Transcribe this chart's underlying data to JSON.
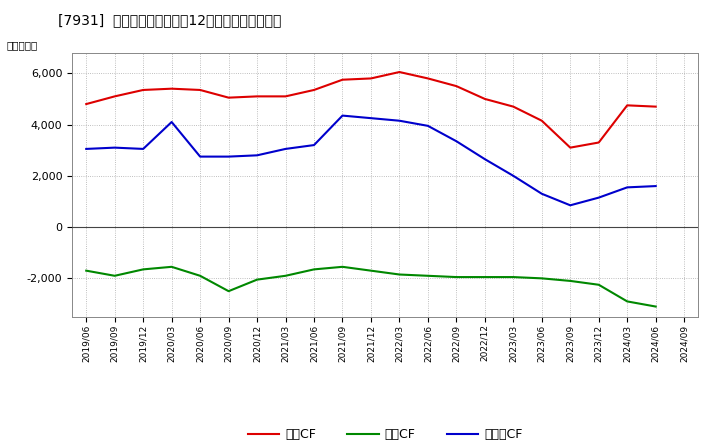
{
  "title": "[7931]  キャッシュフローの12か月移動合計の推移",
  "ylabel": "（百万円）",
  "background_color": "#ffffff",
  "plot_bg_color": "#ffffff",
  "grid_color": "#aaaaaa",
  "ylim": [
    -3500,
    6800
  ],
  "yticks": [
    -2000,
    0,
    2000,
    4000,
    6000
  ],
  "x_labels": [
    "2019/06",
    "2019/09",
    "2019/12",
    "2020/03",
    "2020/06",
    "2020/09",
    "2020/12",
    "2021/03",
    "2021/06",
    "2021/09",
    "2021/12",
    "2022/03",
    "2022/06",
    "2022/09",
    "2022/12",
    "2023/03",
    "2023/06",
    "2023/09",
    "2023/12",
    "2024/03",
    "2024/06",
    "2024/09"
  ],
  "operating_cf": {
    "label": "営業CF",
    "color": "#dd0000",
    "x": [
      "2019/06",
      "2019/09",
      "2019/12",
      "2020/03",
      "2020/06",
      "2020/09",
      "2020/12",
      "2021/03",
      "2021/06",
      "2021/09",
      "2021/12",
      "2022/03",
      "2022/06",
      "2022/09",
      "2022/12",
      "2023/03",
      "2023/06",
      "2023/09",
      "2023/12",
      "2024/03",
      "2024/06"
    ],
    "y": [
      4800,
      5100,
      5350,
      5400,
      5350,
      5050,
      5100,
      5100,
      5350,
      5750,
      5800,
      6050,
      5800,
      5500,
      5000,
      4700,
      4150,
      3100,
      3300,
      4750,
      4700
    ]
  },
  "investing_cf": {
    "label": "投資CF",
    "color": "#008800",
    "x": [
      "2019/06",
      "2019/09",
      "2019/12",
      "2020/03",
      "2020/06",
      "2020/09",
      "2020/12",
      "2021/03",
      "2021/06",
      "2021/09",
      "2021/12",
      "2022/03",
      "2022/06",
      "2022/09",
      "2022/12",
      "2023/03",
      "2023/06",
      "2023/09",
      "2023/12",
      "2024/03",
      "2024/06"
    ],
    "y": [
      -1700,
      -1900,
      -1650,
      -1550,
      -1900,
      -2500,
      -2050,
      -1900,
      -1650,
      -1550,
      -1700,
      -1850,
      -1900,
      -1950,
      -1950,
      -1950,
      -2000,
      -2100,
      -2250,
      -2900,
      -3100
    ]
  },
  "free_cf": {
    "label": "フリーCF",
    "color": "#0000cc",
    "x": [
      "2019/06",
      "2019/09",
      "2019/12",
      "2020/03",
      "2020/06",
      "2020/09",
      "2020/12",
      "2021/03",
      "2021/06",
      "2021/09",
      "2021/12",
      "2022/03",
      "2022/06",
      "2022/09",
      "2022/12",
      "2023/03",
      "2023/06",
      "2023/09",
      "2023/12",
      "2024/03",
      "2024/06"
    ],
    "y": [
      3050,
      3100,
      3050,
      4100,
      2750,
      2750,
      2800,
      3050,
      3200,
      4350,
      4250,
      4150,
      3950,
      3350,
      2650,
      2000,
      1300,
      850,
      1150,
      1550,
      1600
    ]
  }
}
